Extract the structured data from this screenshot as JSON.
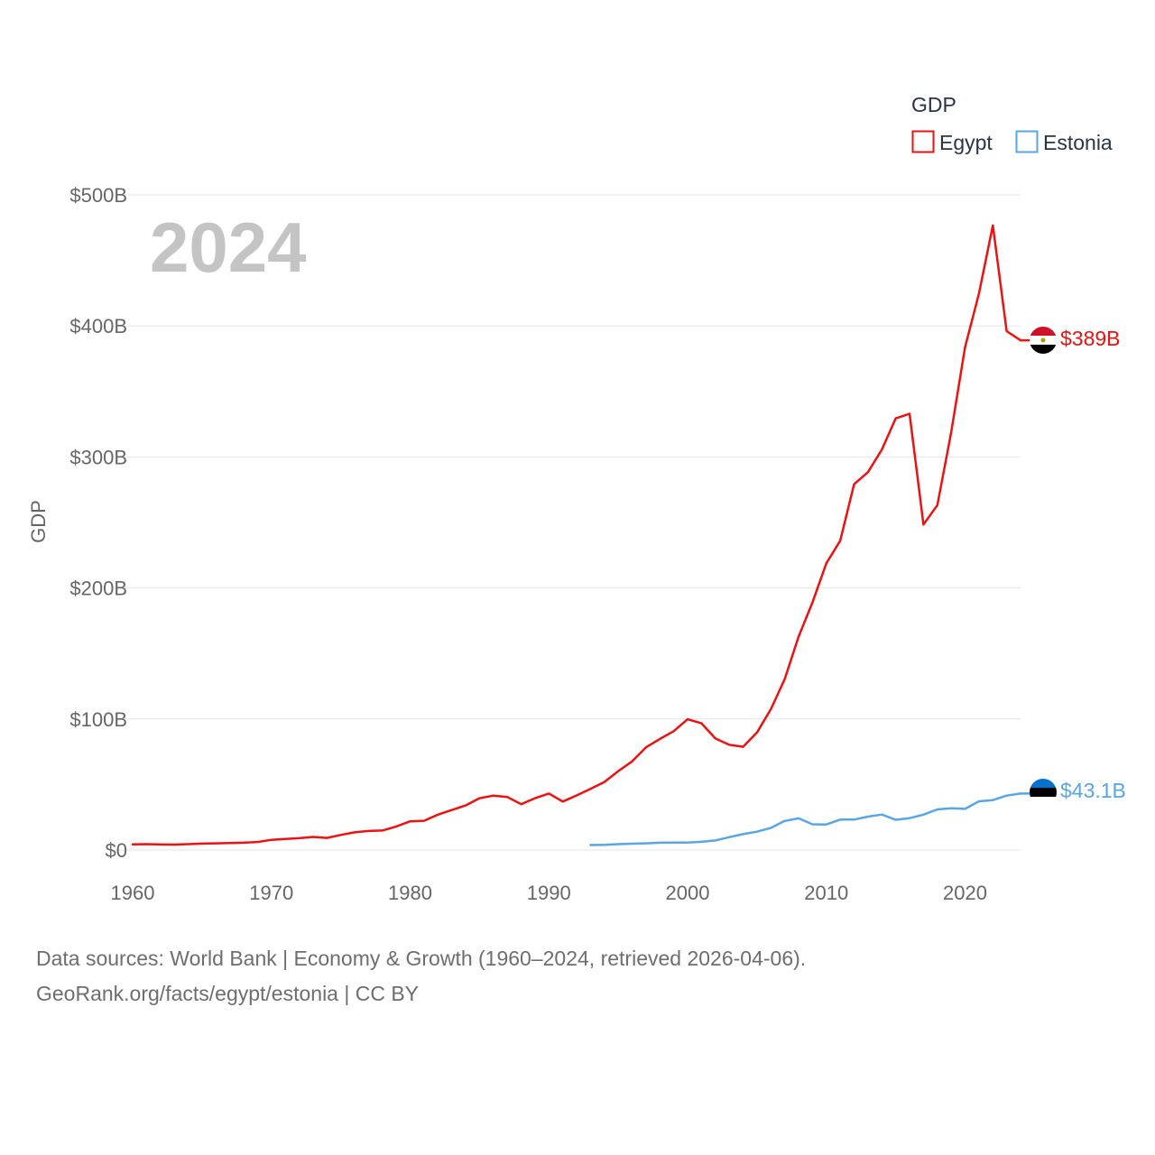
{
  "chart_data": {
    "type": "line",
    "ylabel": "GDP",
    "xlim": [
      1960,
      2024
    ],
    "ylim": [
      0,
      500
    ],
    "y_unit": "billion USD",
    "x_ticks": [
      1960,
      1970,
      1980,
      1990,
      2000,
      2010,
      2020
    ],
    "y_ticks": [
      {
        "value": 0,
        "label": "$0"
      },
      {
        "value": 100,
        "label": "$100B"
      },
      {
        "value": 200,
        "label": "$200B"
      },
      {
        "value": 300,
        "label": "$300B"
      },
      {
        "value": 400,
        "label": "$400B"
      },
      {
        "value": 500,
        "label": "$500B"
      }
    ],
    "year_label": "2024",
    "legend": {
      "title": "GDP",
      "position": "top-right"
    },
    "series": [
      {
        "name": "Egypt",
        "color": "#ee1111",
        "end_label": "$389B",
        "flag": "egypt-flag",
        "x": [
          1960,
          1961,
          1962,
          1963,
          1964,
          1965,
          1966,
          1967,
          1968,
          1969,
          1970,
          1971,
          1972,
          1973,
          1974,
          1975,
          1976,
          1977,
          1978,
          1979,
          1980,
          1981,
          1982,
          1983,
          1984,
          1985,
          1986,
          1987,
          1988,
          1989,
          1990,
          1991,
          1992,
          1993,
          1994,
          1995,
          1996,
          1997,
          1998,
          1999,
          2000,
          2001,
          2002,
          2003,
          2004,
          2005,
          2006,
          2007,
          2008,
          2009,
          2010,
          2011,
          2012,
          2013,
          2014,
          2015,
          2016,
          2017,
          2018,
          2019,
          2020,
          2021,
          2022,
          2023,
          2024
        ],
        "values": [
          4.3,
          4.5,
          4.2,
          4.1,
          4.5,
          4.9,
          5.1,
          5.4,
          5.6,
          6.1,
          7.8,
          8.5,
          9,
          10,
          9.2,
          11.5,
          13.5,
          14.5,
          14.9,
          18,
          21.9,
          22.3,
          27,
          30.5,
          34,
          39.5,
          41.5,
          40.5,
          35,
          39.5,
          43.1,
          37,
          41.7,
          46.6,
          51.9,
          60.2,
          67.6,
          78.4,
          84.8,
          90.7,
          99.8,
          96.7,
          85.1,
          80.3,
          78.8,
          89.7,
          107.5,
          130.4,
          162.8,
          189,
          218.9,
          236,
          279.1,
          288.4,
          305.6,
          329.4,
          332.9,
          248.4,
          263.2,
          318.7,
          383.8,
          424.7,
          476.7,
          396,
          389
        ]
      },
      {
        "name": "Estonia",
        "color": "#5aa5e6",
        "end_label": "$43.1B",
        "flag": "estonia-flag",
        "x": [
          1993,
          1994,
          1995,
          1996,
          1997,
          1998,
          1999,
          2000,
          2001,
          2002,
          2003,
          2004,
          2005,
          2006,
          2007,
          2008,
          2009,
          2010,
          2011,
          2012,
          2013,
          2014,
          2015,
          2016,
          2017,
          2018,
          2019,
          2020,
          2021,
          2022,
          2023,
          2024
        ],
        "values": [
          3.8,
          4,
          4.5,
          4.8,
          5.1,
          5.6,
          5.7,
          5.7,
          6.3,
          7.3,
          9.8,
          12.1,
          14,
          16.9,
          22.2,
          24.2,
          19.6,
          19.5,
          23.2,
          23.2,
          25.5,
          27.1,
          23.1,
          24.3,
          27,
          31,
          31.9,
          31.4,
          37.2,
          38.1,
          41.5,
          43.1
        ]
      }
    ]
  },
  "source": {
    "line1": "Data sources: World Bank | Economy & Growth (1960–2024, retrieved 2026-04-06).",
    "line2": "GeoRank.org/facts/egypt/estonia | CC BY"
  }
}
